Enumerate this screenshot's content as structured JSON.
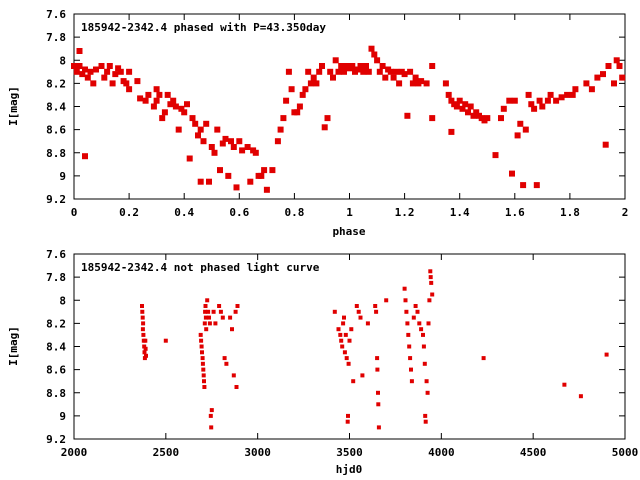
{
  "colors": {
    "points": "#e00000",
    "frame": "#000000",
    "background": "#ffffff"
  },
  "chart_data": [
    {
      "type": "scatter",
      "title": "185942-2342.4 phased with P=43.350day",
      "xlabel": "phase",
      "ylabel": "I[mag]",
      "xlim": [
        0,
        2
      ],
      "ylim": [
        7.6,
        9.2
      ],
      "y_inverted": true,
      "grid": false,
      "x_ticks": [
        "0",
        "0.2",
        "0.4",
        "0.6",
        "0.8",
        "1",
        "1.2",
        "1.4",
        "1.6",
        "1.8",
        "2"
      ],
      "y_ticks": [
        "7.6",
        "7.8",
        "8",
        "8.2",
        "8.4",
        "8.6",
        "8.8",
        "9",
        "9.2"
      ],
      "marker_color": "#e00000",
      "points": [
        [
          0.0,
          8.05
        ],
        [
          0.01,
          8.1
        ],
        [
          0.02,
          7.92
        ],
        [
          0.02,
          8.05
        ],
        [
          0.03,
          8.12
        ],
        [
          0.04,
          8.08
        ],
        [
          0.04,
          8.83
        ],
        [
          0.05,
          8.15
        ],
        [
          0.06,
          8.1
        ],
        [
          0.07,
          8.2
        ],
        [
          0.08,
          8.08
        ],
        [
          0.1,
          8.05
        ],
        [
          0.11,
          8.15
        ],
        [
          0.12,
          8.1
        ],
        [
          0.13,
          8.05
        ],
        [
          0.14,
          8.2
        ],
        [
          0.15,
          8.12
        ],
        [
          0.16,
          8.07
        ],
        [
          0.17,
          8.1
        ],
        [
          0.18,
          8.18
        ],
        [
          0.19,
          8.2
        ],
        [
          0.2,
          8.1
        ],
        [
          0.2,
          8.25
        ],
        [
          0.23,
          8.18
        ],
        [
          0.24,
          8.33
        ],
        [
          0.26,
          8.35
        ],
        [
          0.27,
          8.3
        ],
        [
          0.29,
          8.4
        ],
        [
          0.3,
          8.25
        ],
        [
          0.3,
          8.35
        ],
        [
          0.31,
          8.3
        ],
        [
          0.32,
          8.5
        ],
        [
          0.33,
          8.45
        ],
        [
          0.34,
          8.3
        ],
        [
          0.35,
          8.38
        ],
        [
          0.36,
          8.35
        ],
        [
          0.37,
          8.4
        ],
        [
          0.38,
          8.6
        ],
        [
          0.39,
          8.42
        ],
        [
          0.4,
          8.45
        ],
        [
          0.41,
          8.38
        ],
        [
          0.42,
          8.85
        ],
        [
          0.43,
          8.5
        ],
        [
          0.44,
          8.55
        ],
        [
          0.45,
          8.65
        ],
        [
          0.46,
          8.6
        ],
        [
          0.46,
          9.05
        ],
        [
          0.47,
          8.7
        ],
        [
          0.48,
          8.55
        ],
        [
          0.49,
          9.05
        ],
        [
          0.5,
          8.75
        ],
        [
          0.51,
          8.8
        ],
        [
          0.52,
          8.6
        ],
        [
          0.53,
          8.95
        ],
        [
          0.54,
          8.72
        ],
        [
          0.55,
          8.68
        ],
        [
          0.56,
          9.0
        ],
        [
          0.57,
          8.7
        ],
        [
          0.58,
          8.75
        ],
        [
          0.59,
          9.1
        ],
        [
          0.6,
          8.7
        ],
        [
          0.61,
          8.78
        ],
        [
          0.63,
          8.75
        ],
        [
          0.64,
          9.05
        ],
        [
          0.65,
          8.78
        ],
        [
          0.66,
          8.8
        ],
        [
          0.67,
          9.0
        ],
        [
          0.68,
          9.0
        ],
        [
          0.69,
          8.95
        ],
        [
          0.7,
          9.12
        ],
        [
          0.72,
          8.95
        ],
        [
          0.74,
          8.7
        ],
        [
          0.75,
          8.6
        ],
        [
          0.76,
          8.5
        ],
        [
          0.77,
          8.35
        ],
        [
          0.78,
          8.1
        ],
        [
          0.79,
          8.25
        ],
        [
          0.8,
          8.45
        ],
        [
          0.81,
          8.45
        ],
        [
          0.82,
          8.4
        ],
        [
          0.83,
          8.3
        ],
        [
          0.84,
          8.25
        ],
        [
          0.85,
          8.1
        ],
        [
          0.86,
          8.2
        ],
        [
          0.87,
          8.15
        ],
        [
          0.88,
          8.2
        ],
        [
          0.89,
          8.1
        ],
        [
          0.9,
          8.05
        ],
        [
          0.91,
          8.58
        ],
        [
          0.92,
          8.5
        ],
        [
          0.93,
          8.1
        ],
        [
          0.94,
          8.15
        ],
        [
          0.95,
          8.0
        ],
        [
          0.96,
          8.1
        ],
        [
          0.97,
          8.05
        ],
        [
          0.98,
          8.1
        ],
        [
          0.99,
          8.05
        ],
        [
          1.0,
          8.07
        ],
        [
          1.01,
          8.05
        ],
        [
          1.02,
          8.1
        ],
        [
          1.03,
          8.08
        ],
        [
          1.04,
          8.05
        ],
        [
          1.05,
          8.1
        ],
        [
          1.06,
          8.05
        ],
        [
          1.07,
          8.1
        ],
        [
          1.08,
          7.9
        ],
        [
          1.09,
          7.95
        ],
        [
          1.1,
          8.0
        ],
        [
          1.11,
          8.1
        ],
        [
          1.12,
          8.05
        ],
        [
          1.13,
          8.15
        ],
        [
          1.14,
          8.08
        ],
        [
          1.15,
          8.1
        ],
        [
          1.16,
          8.15
        ],
        [
          1.17,
          8.1
        ],
        [
          1.18,
          8.2
        ],
        [
          1.19,
          8.1
        ],
        [
          1.2,
          8.12
        ],
        [
          1.21,
          8.48
        ],
        [
          1.22,
          8.1
        ],
        [
          1.23,
          8.2
        ],
        [
          1.24,
          8.15
        ],
        [
          1.25,
          8.2
        ],
        [
          1.26,
          8.18
        ],
        [
          1.28,
          8.2
        ],
        [
          1.3,
          8.05
        ],
        [
          1.3,
          8.5
        ],
        [
          1.35,
          8.2
        ],
        [
          1.36,
          8.3
        ],
        [
          1.37,
          8.35
        ],
        [
          1.37,
          8.62
        ],
        [
          1.38,
          8.38
        ],
        [
          1.39,
          8.4
        ],
        [
          1.4,
          8.35
        ],
        [
          1.41,
          8.42
        ],
        [
          1.42,
          8.38
        ],
        [
          1.43,
          8.45
        ],
        [
          1.44,
          8.4
        ],
        [
          1.45,
          8.48
        ],
        [
          1.46,
          8.45
        ],
        [
          1.47,
          8.48
        ],
        [
          1.48,
          8.5
        ],
        [
          1.49,
          8.52
        ],
        [
          1.5,
          8.5
        ],
        [
          1.53,
          8.82
        ],
        [
          1.55,
          8.5
        ],
        [
          1.56,
          8.42
        ],
        [
          1.58,
          8.35
        ],
        [
          1.59,
          8.98
        ],
        [
          1.6,
          8.35
        ],
        [
          1.61,
          8.65
        ],
        [
          1.62,
          8.55
        ],
        [
          1.63,
          9.08
        ],
        [
          1.64,
          8.6
        ],
        [
          1.65,
          8.3
        ],
        [
          1.66,
          8.38
        ],
        [
          1.67,
          8.42
        ],
        [
          1.68,
          9.08
        ],
        [
          1.69,
          8.35
        ],
        [
          1.7,
          8.4
        ],
        [
          1.72,
          8.35
        ],
        [
          1.73,
          8.3
        ],
        [
          1.75,
          8.35
        ],
        [
          1.77,
          8.32
        ],
        [
          1.79,
          8.3
        ],
        [
          1.81,
          8.3
        ],
        [
          1.82,
          8.25
        ],
        [
          1.86,
          8.2
        ],
        [
          1.88,
          8.25
        ],
        [
          1.9,
          8.15
        ],
        [
          1.92,
          8.12
        ],
        [
          1.93,
          8.73
        ],
        [
          1.94,
          8.05
        ],
        [
          1.96,
          8.2
        ],
        [
          1.97,
          8.0
        ],
        [
          1.98,
          8.05
        ],
        [
          1.99,
          8.15
        ]
      ]
    },
    {
      "type": "scatter",
      "title": "185942-2342.4 not phased light curve",
      "xlabel": "hjd0",
      "ylabel": "I[mag]",
      "xlim": [
        2000,
        5000
      ],
      "ylim": [
        7.6,
        9.2
      ],
      "y_inverted": true,
      "grid": false,
      "x_ticks": [
        "2000",
        "2500",
        "3000",
        "3500",
        "4000",
        "4500",
        "5000"
      ],
      "y_ticks": [
        "7.6",
        "7.8",
        "8",
        "8.2",
        "8.4",
        "8.6",
        "8.8",
        "9",
        "9.2"
      ],
      "marker_color": "#e00000",
      "points": [
        [
          2370,
          8.05
        ],
        [
          2372,
          8.1
        ],
        [
          2374,
          8.15
        ],
        [
          2376,
          8.2
        ],
        [
          2375,
          8.25
        ],
        [
          2378,
          8.3
        ],
        [
          2380,
          8.35
        ],
        [
          2382,
          8.4
        ],
        [
          2384,
          8.45
        ],
        [
          2386,
          8.5
        ],
        [
          2388,
          8.35
        ],
        [
          2390,
          8.42
        ],
        [
          2392,
          8.48
        ],
        [
          2500,
          8.35
        ],
        [
          2690,
          8.3
        ],
        [
          2692,
          8.35
        ],
        [
          2695,
          8.4
        ],
        [
          2697,
          8.45
        ],
        [
          2700,
          8.5
        ],
        [
          2702,
          8.55
        ],
        [
          2704,
          8.6
        ],
        [
          2706,
          8.65
        ],
        [
          2708,
          8.7
        ],
        [
          2710,
          8.75
        ],
        [
          2712,
          8.2
        ],
        [
          2714,
          8.1
        ],
        [
          2716,
          8.05
        ],
        [
          2718,
          8.15
        ],
        [
          2720,
          8.25
        ],
        [
          2725,
          8.0
        ],
        [
          2730,
          8.1
        ],
        [
          2735,
          8.15
        ],
        [
          2740,
          8.2
        ],
        [
          2745,
          9.0
        ],
        [
          2747,
          9.1
        ],
        [
          2750,
          8.95
        ],
        [
          2760,
          8.1
        ],
        [
          2770,
          8.2
        ],
        [
          2790,
          8.05
        ],
        [
          2800,
          8.1
        ],
        [
          2810,
          8.15
        ],
        [
          2820,
          8.5
        ],
        [
          2830,
          8.55
        ],
        [
          2850,
          8.15
        ],
        [
          2860,
          8.25
        ],
        [
          2870,
          8.65
        ],
        [
          2880,
          8.1
        ],
        [
          2885,
          8.75
        ],
        [
          2890,
          8.05
        ],
        [
          3420,
          8.1
        ],
        [
          3440,
          8.25
        ],
        [
          3450,
          8.3
        ],
        [
          3455,
          8.35
        ],
        [
          3460,
          8.4
        ],
        [
          3465,
          8.2
        ],
        [
          3470,
          8.15
        ],
        [
          3475,
          8.45
        ],
        [
          3480,
          8.3
        ],
        [
          3485,
          8.5
        ],
        [
          3490,
          9.05
        ],
        [
          3492,
          9.0
        ],
        [
          3495,
          8.55
        ],
        [
          3500,
          8.35
        ],
        [
          3510,
          8.25
        ],
        [
          3520,
          8.7
        ],
        [
          3540,
          8.05
        ],
        [
          3550,
          8.1
        ],
        [
          3560,
          8.15
        ],
        [
          3570,
          8.65
        ],
        [
          3600,
          8.2
        ],
        [
          3640,
          8.05
        ],
        [
          3645,
          8.1
        ],
        [
          3650,
          8.5
        ],
        [
          3652,
          8.6
        ],
        [
          3655,
          8.8
        ],
        [
          3657,
          8.9
        ],
        [
          3660,
          9.1
        ],
        [
          3700,
          8.0
        ],
        [
          3800,
          7.9
        ],
        [
          3805,
          8.0
        ],
        [
          3810,
          8.1
        ],
        [
          3815,
          8.2
        ],
        [
          3820,
          8.3
        ],
        [
          3825,
          8.4
        ],
        [
          3830,
          8.5
        ],
        [
          3835,
          8.6
        ],
        [
          3840,
          8.7
        ],
        [
          3850,
          8.15
        ],
        [
          3860,
          8.05
        ],
        [
          3870,
          8.1
        ],
        [
          3880,
          8.2
        ],
        [
          3890,
          8.25
        ],
        [
          3900,
          8.3
        ],
        [
          3905,
          8.4
        ],
        [
          3910,
          8.55
        ],
        [
          3912,
          9.0
        ],
        [
          3915,
          9.05
        ],
        [
          3920,
          8.7
        ],
        [
          3925,
          8.8
        ],
        [
          3930,
          8.2
        ],
        [
          3935,
          8.0
        ],
        [
          3940,
          7.75
        ],
        [
          3942,
          7.8
        ],
        [
          3945,
          7.85
        ],
        [
          3950,
          7.95
        ],
        [
          4230,
          8.5
        ],
        [
          4670,
          8.73
        ],
        [
          4760,
          8.83
        ],
        [
          4900,
          8.47
        ]
      ]
    }
  ]
}
